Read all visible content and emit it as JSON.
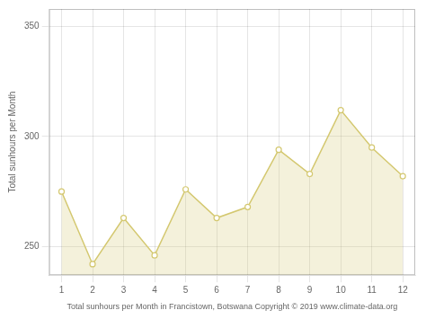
{
  "chart_data": {
    "type": "area",
    "xlabel": "Total sunhours per Month in Francistown, Botswana Copyright © 2019 www.climate-data.org",
    "ylabel": "Total sunhours per Month",
    "x": [
      1,
      2,
      3,
      4,
      5,
      6,
      7,
      8,
      9,
      10,
      11,
      12
    ],
    "values": [
      275,
      242,
      263,
      246,
      276,
      263,
      268,
      294,
      283,
      312,
      295,
      282
    ],
    "color": "#D4C870",
    "marker": "circle",
    "xlim": [
      0.6,
      12.4
    ],
    "xticks": [
      1,
      2,
      3,
      4,
      5,
      6,
      7,
      8,
      9,
      10,
      11,
      12
    ],
    "ylim": [
      237,
      358
    ],
    "yticks": [
      250,
      300,
      350
    ],
    "grid": true
  }
}
